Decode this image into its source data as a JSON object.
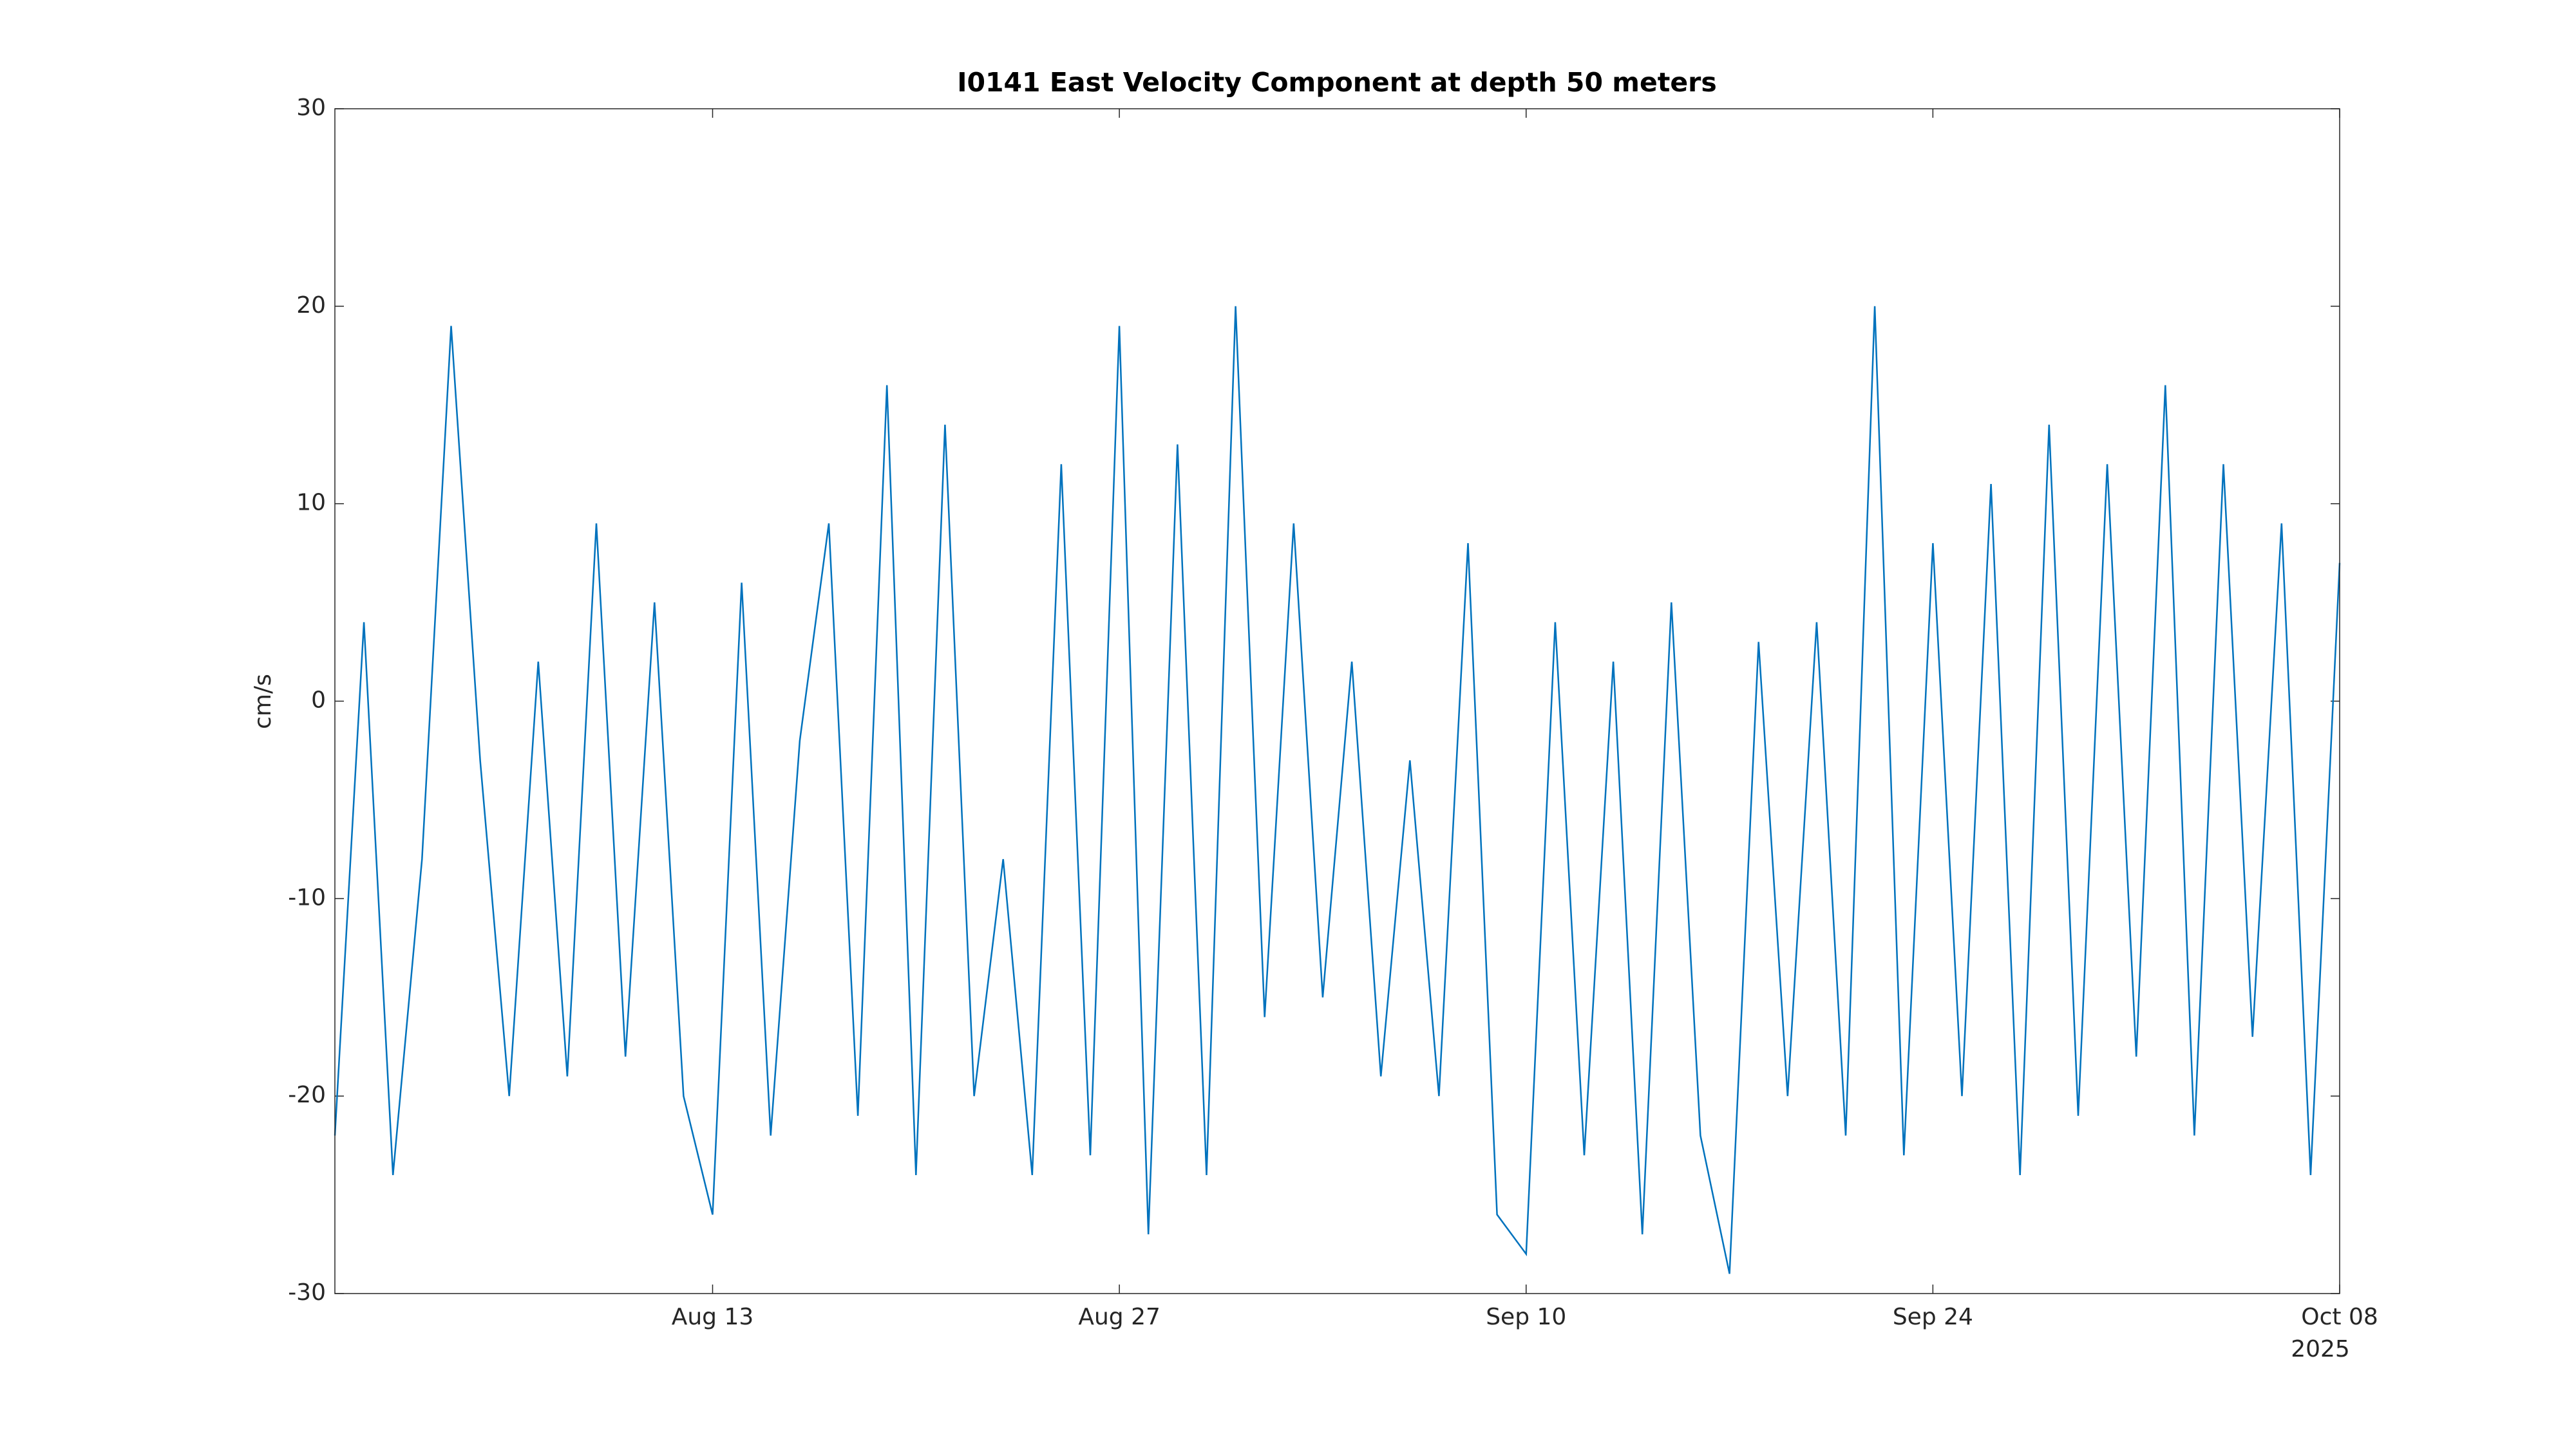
{
  "chart_data": {
    "type": "line",
    "title": "I0141 East Velocity Component at depth 50 meters",
    "ylabel": "cm/s",
    "xlabel_year": "2025",
    "x": [
      "2025-07-31",
      "2025-08-01",
      "2025-08-02",
      "2025-08-03",
      "2025-08-04",
      "2025-08-05",
      "2025-08-06",
      "2025-08-07",
      "2025-08-08",
      "2025-08-09",
      "2025-08-10",
      "2025-08-11",
      "2025-08-12",
      "2025-08-13",
      "2025-08-14",
      "2025-08-15",
      "2025-08-16",
      "2025-08-17",
      "2025-08-18",
      "2025-08-19",
      "2025-08-20",
      "2025-08-21",
      "2025-08-22",
      "2025-08-23",
      "2025-08-24",
      "2025-08-25",
      "2025-08-26",
      "2025-08-27",
      "2025-08-28",
      "2025-08-29",
      "2025-08-30",
      "2025-08-31",
      "2025-09-01",
      "2025-09-02",
      "2025-09-03",
      "2025-09-04",
      "2025-09-05",
      "2025-09-06",
      "2025-09-07",
      "2025-09-08",
      "2025-09-09",
      "2025-09-10",
      "2025-09-11",
      "2025-09-12",
      "2025-09-13",
      "2025-09-14",
      "2025-09-15",
      "2025-09-16",
      "2025-09-17",
      "2025-09-18",
      "2025-09-19",
      "2025-09-20",
      "2025-09-21",
      "2025-09-22",
      "2025-09-23",
      "2025-09-24",
      "2025-09-25",
      "2025-09-26",
      "2025-09-27",
      "2025-09-28",
      "2025-09-29",
      "2025-09-30",
      "2025-10-01",
      "2025-10-02",
      "2025-10-03",
      "2025-10-04",
      "2025-10-05",
      "2025-10-06",
      "2025-10-07",
      "2025-10-08"
    ],
    "series": [
      {
        "name": "East Velocity",
        "color": "#0072bd",
        "values": [
          -22,
          4,
          -24,
          -8,
          19,
          -3,
          -20,
          2,
          -19,
          9,
          -18,
          5,
          -20,
          -26,
          6,
          -22,
          -2,
          9,
          -21,
          16,
          -24,
          14,
          -20,
          -8,
          -24,
          12,
          -23,
          19,
          -27,
          13,
          -24,
          20,
          -16,
          9,
          -15,
          2,
          -19,
          -3,
          -20,
          8,
          -26,
          -28,
          4,
          -23,
          2,
          -27,
          5,
          -22,
          -29,
          3,
          -20,
          4,
          -22,
          20,
          -23,
          8,
          -20,
          11,
          -24,
          14,
          -21,
          12,
          -18,
          16,
          -22,
          12,
          -17,
          9,
          -24,
          7
        ]
      }
    ],
    "xlim": [
      "2025-07-31",
      "2025-10-08"
    ],
    "xticks": [
      {
        "value": "2025-08-13",
        "label": "Aug 13"
      },
      {
        "value": "2025-08-27",
        "label": "Aug 27"
      },
      {
        "value": "2025-09-10",
        "label": "Sep 10"
      },
      {
        "value": "2025-09-24",
        "label": "Sep 24"
      },
      {
        "value": "2025-10-08",
        "label": "Oct 08"
      }
    ],
    "ylim": [
      -30,
      30
    ],
    "yticks": [
      -30,
      -20,
      -10,
      0,
      10,
      20,
      30
    ],
    "grid": false
  }
}
